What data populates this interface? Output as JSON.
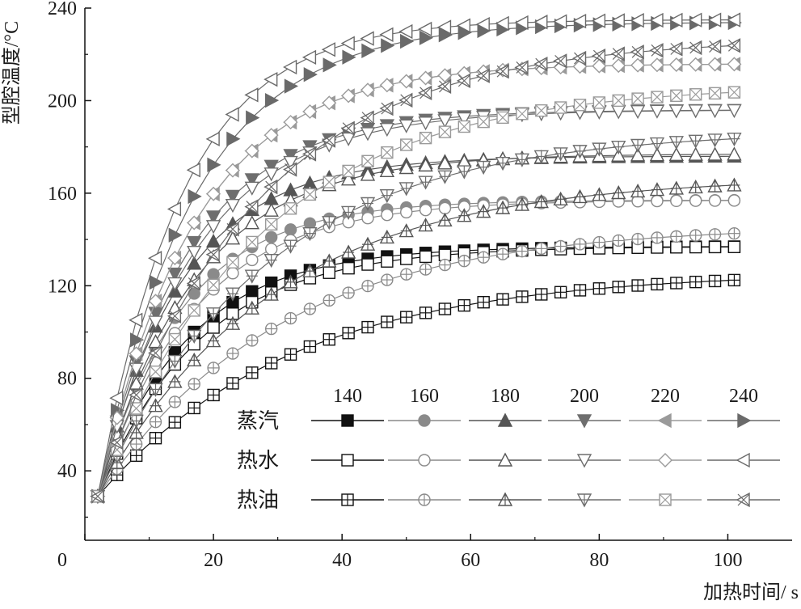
{
  "chart_data": {
    "type": "line",
    "xlabel": "加热时间/ s",
    "ylabel": "型腔温度/°C",
    "xlim": [
      0,
      110
    ],
    "ylim": [
      10,
      240
    ],
    "xticks": [
      0,
      20,
      40,
      60,
      80,
      100
    ],
    "yticks": [
      40,
      80,
      120,
      160,
      200,
      240
    ],
    "x_tick_labels": [
      "0",
      "20",
      "40",
      "60",
      "80",
      "100"
    ],
    "y_tick_labels": [
      "40",
      "80",
      "120",
      "160",
      "200",
      "240"
    ],
    "x_step": 3,
    "start_temp": 29,
    "grid": false,
    "legend": {
      "placement": "bottom-right",
      "columns": [
        "140",
        "160",
        "180",
        "200",
        "220",
        "240"
      ],
      "rows": [
        "蒸汽",
        "热水",
        "热油"
      ]
    },
    "colors": [
      "#111111",
      "#8a8a8a",
      "#555555",
      "#6e6e6e",
      "#9a9a9a",
      "#6a6a6a"
    ],
    "series": [
      {
        "name": "140",
        "medium": "蒸汽",
        "marker": "square-filled",
        "final": 137,
        "tau": 14
      },
      {
        "name": "160",
        "medium": "蒸汽",
        "marker": "circle-filled",
        "final": 157,
        "tau": 13
      },
      {
        "name": "180",
        "medium": "蒸汽",
        "marker": "triangle-up-filled",
        "final": 176,
        "tau": 13
      },
      {
        "name": "200",
        "medium": "蒸汽",
        "marker": "triangle-down-filled",
        "final": 196,
        "tau": 14
      },
      {
        "name": "220",
        "medium": "蒸汽",
        "marker": "triangle-left-filled",
        "final": 216,
        "tau": 15
      },
      {
        "name": "240",
        "medium": "蒸汽",
        "marker": "triangle-right-filled",
        "final": 234,
        "tau": 15
      },
      {
        "name": "140",
        "medium": "热水",
        "marker": "square-open",
        "final": 137,
        "tau": 16
      },
      {
        "name": "160",
        "medium": "热水",
        "marker": "circle-open",
        "final": 157,
        "tau": 15
      },
      {
        "name": "180",
        "medium": "热水",
        "marker": "triangle-up-open",
        "final": 177,
        "tau": 15
      },
      {
        "name": "200",
        "medium": "热水",
        "marker": "triangle-down-open",
        "final": 196,
        "tau": 15
      },
      {
        "name": "220",
        "medium": "热水",
        "marker": "diamond-open",
        "final": 216,
        "tau": 15
      },
      {
        "name": "240",
        "medium": "热水",
        "marker": "triangle-left-open",
        "final": 235,
        "tau": 13
      },
      {
        "name": "140",
        "medium": "热油",
        "marker": "square-plus",
        "final": 126,
        "tau": 30
      },
      {
        "name": "160",
        "medium": "热油",
        "marker": "circle-plus",
        "final": 146,
        "tau": 28
      },
      {
        "name": "180",
        "medium": "热油",
        "marker": "triangle-plus",
        "final": 167,
        "tau": 27
      },
      {
        "name": "200",
        "medium": "热油",
        "marker": "triangle-down-plus",
        "final": 187,
        "tau": 26
      },
      {
        "name": "220",
        "medium": "热油",
        "marker": "square-x",
        "final": 207,
        "tau": 25
      },
      {
        "name": "240",
        "medium": "热油",
        "marker": "triangle-left-x",
        "final": 227,
        "tau": 24
      }
    ]
  }
}
